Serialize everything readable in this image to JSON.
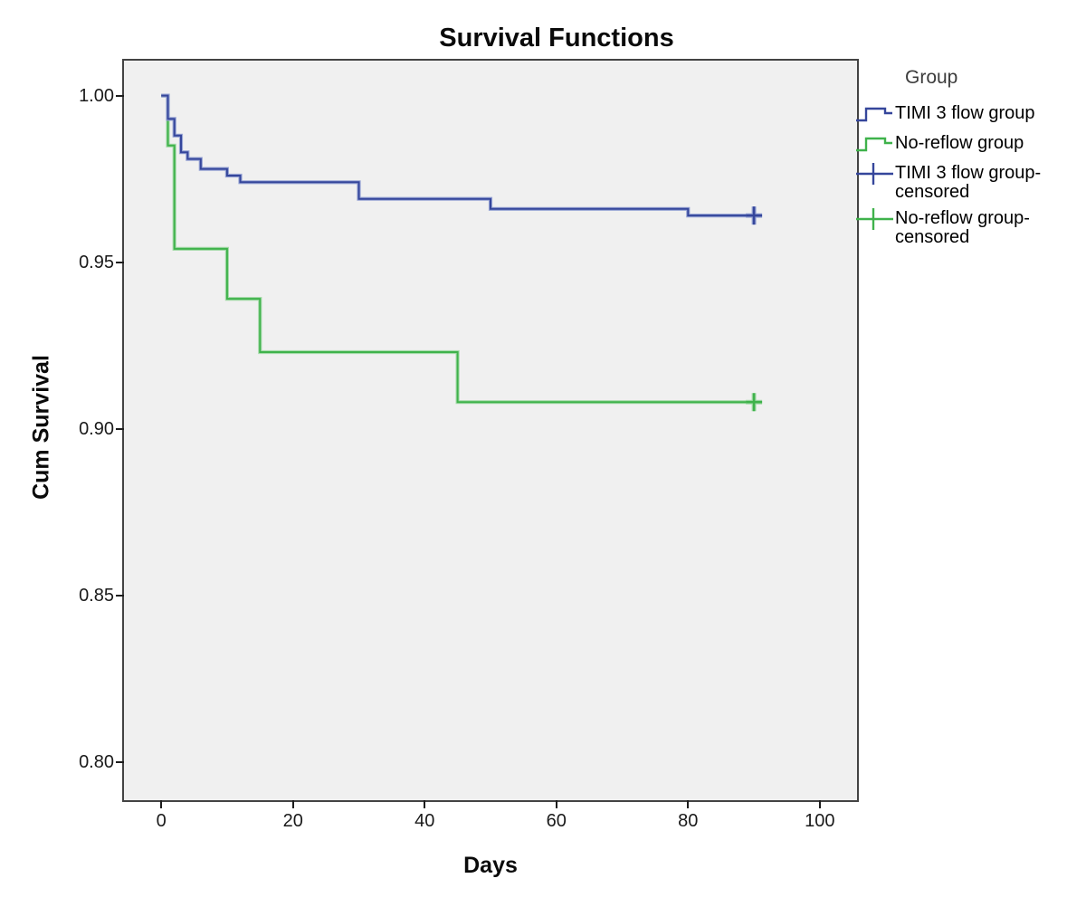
{
  "chart": {
    "title": "Survival Functions",
    "x_label": "Days",
    "y_label": "Cum Survival",
    "legend_title": "Group"
  },
  "chart_data": {
    "type": "line",
    "subtype": "kaplan-meier-step",
    "title": "Survival Functions",
    "xlabel": "Days",
    "ylabel": "Cum Survival",
    "grid": false,
    "plot_background": "#F0F0F0",
    "border_color": "#434343",
    "legend_position": "right",
    "x_ticks": [
      0,
      20,
      40,
      60,
      80,
      100
    ],
    "y_ticks": [
      0.8,
      0.85,
      0.9,
      0.95,
      1.0
    ],
    "x_domain": [
      -5.7,
      105.7
    ],
    "y_domain": [
      0.7885,
      1.0105
    ],
    "series": [
      {
        "name": "No-reflow group",
        "color_core": "#3FB24B",
        "color_halo": "#A6DBAA",
        "steps": [
          [
            0,
            1.0
          ],
          [
            1,
            0.985
          ],
          [
            2,
            0.954
          ],
          [
            10,
            0.939
          ],
          [
            15,
            0.923
          ],
          [
            45,
            0.908
          ],
          [
            91,
            0.908
          ]
        ],
        "censored": [
          [
            90,
            0.908
          ]
        ]
      },
      {
        "name": "TIMI 3 flow group",
        "color_core": "#35469B",
        "color_halo": "#97A4D4",
        "steps": [
          [
            0,
            1.0
          ],
          [
            1,
            0.993
          ],
          [
            2,
            0.988
          ],
          [
            3,
            0.983
          ],
          [
            4,
            0.981
          ],
          [
            6,
            0.978
          ],
          [
            10,
            0.976
          ],
          [
            12,
            0.974
          ],
          [
            30,
            0.969
          ],
          [
            50,
            0.966
          ],
          [
            80,
            0.964
          ],
          [
            91,
            0.964
          ]
        ],
        "censored": [
          [
            90,
            0.964
          ]
        ]
      }
    ],
    "legend_entries": [
      {
        "label": "TIMI 3 flow group",
        "symbol": "step-line",
        "color": "#35469B"
      },
      {
        "label": "No-reflow group",
        "symbol": "step-line",
        "color": "#3FB24B"
      },
      {
        "label": "TIMI 3 flow group-censored",
        "symbol": "censor-plus",
        "color": "#35469B"
      },
      {
        "label": "No-reflow group-censored",
        "symbol": "censor-plus",
        "color": "#3FB24B"
      }
    ]
  }
}
